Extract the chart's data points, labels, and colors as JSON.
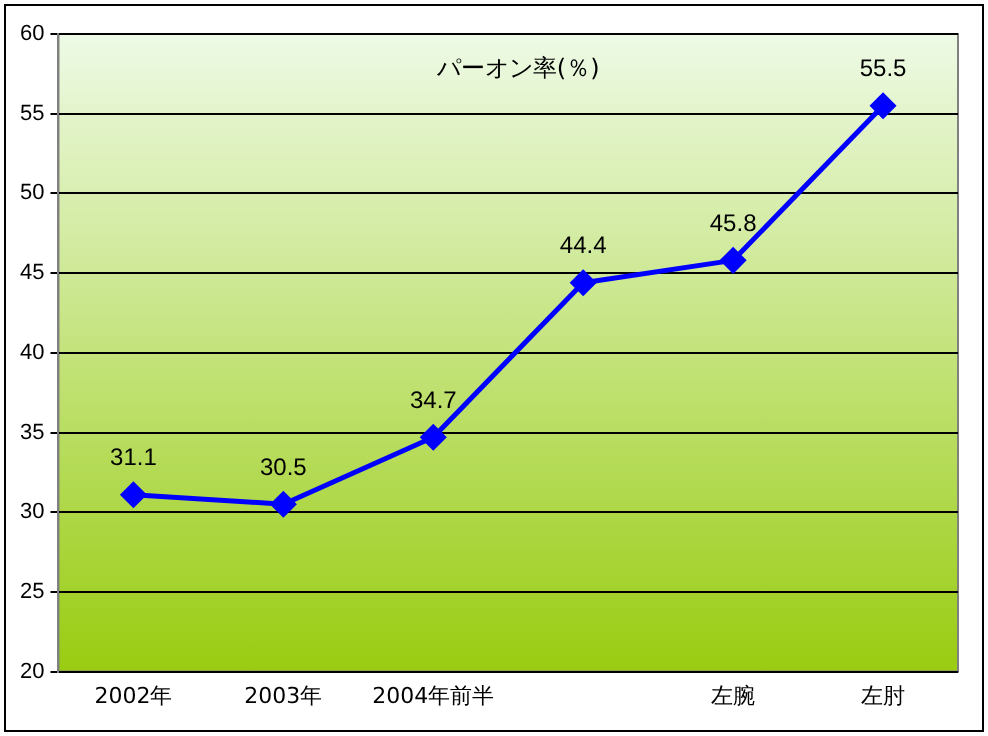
{
  "chart_data": {
    "type": "line",
    "title": "パーオン率(％)",
    "categories": [
      "2002年",
      "2003年",
      "2004年前半",
      null,
      "左腕",
      "左肘"
    ],
    "series": [
      {
        "color": "#0000ff",
        "values": [
          31.1,
          30.5,
          34.7,
          44.4,
          45.8,
          55.5
        ]
      }
    ],
    "ylim": [
      20,
      60
    ],
    "yticks": [
      20,
      25,
      30,
      35,
      40,
      45,
      50,
      55,
      60
    ],
    "grid": "y",
    "legend": false,
    "marker": "diamond",
    "line_style": "solid",
    "data_labels": true
  }
}
